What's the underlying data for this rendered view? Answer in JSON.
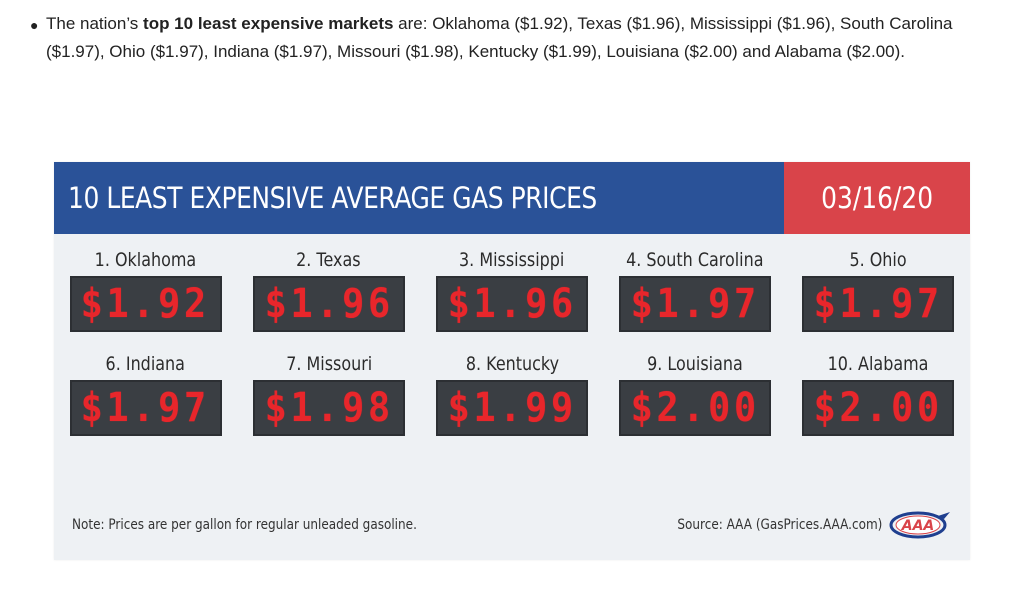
{
  "bullet": {
    "intro": "The nation’s ",
    "emphasis": "top 10 least expensive markets",
    "rest": " are: Oklahoma ($1.92), Texas ($1.96), Mississippi ($1.96), South Carolina ($1.97), Ohio ($1.97), Indiana ($1.97), Missouri ($1.98), Kentucky ($1.99), Louisiana ($2.00) and Alabama ($2.00)."
  },
  "card": {
    "title": "10 LEAST EXPENSIVE AVERAGE GAS PRICES",
    "date": "03/16/20",
    "colors": {
      "title_bg": "#2a5298",
      "date_bg": "#d9444a",
      "price_digit": "#e8262b",
      "price_bg": "#3a3e43"
    },
    "markets": [
      {
        "label": "1. Oklahoma",
        "price": "$1.92"
      },
      {
        "label": "2. Texas",
        "price": "$1.96"
      },
      {
        "label": "3. Mississippi",
        "price": "$1.96"
      },
      {
        "label": "4. South Carolina",
        "price": "$1.97"
      },
      {
        "label": "5. Ohio",
        "price": "$1.97"
      },
      {
        "label": "6. Indiana",
        "price": "$1.97"
      },
      {
        "label": "7. Missouri",
        "price": "$1.98"
      },
      {
        "label": "8. Kentucky",
        "price": "$1.99"
      },
      {
        "label": "9. Louisiana",
        "price": "$2.00"
      },
      {
        "label": "10. Alabama",
        "price": "$2.00"
      }
    ],
    "note": "Note: Prices are per gallon for regular unleaded gasoline.",
    "source": "Source: AAA (GasPrices.AAA.com)",
    "logo": {
      "icon": "aaa-logo-icon",
      "text": "AAA"
    }
  }
}
